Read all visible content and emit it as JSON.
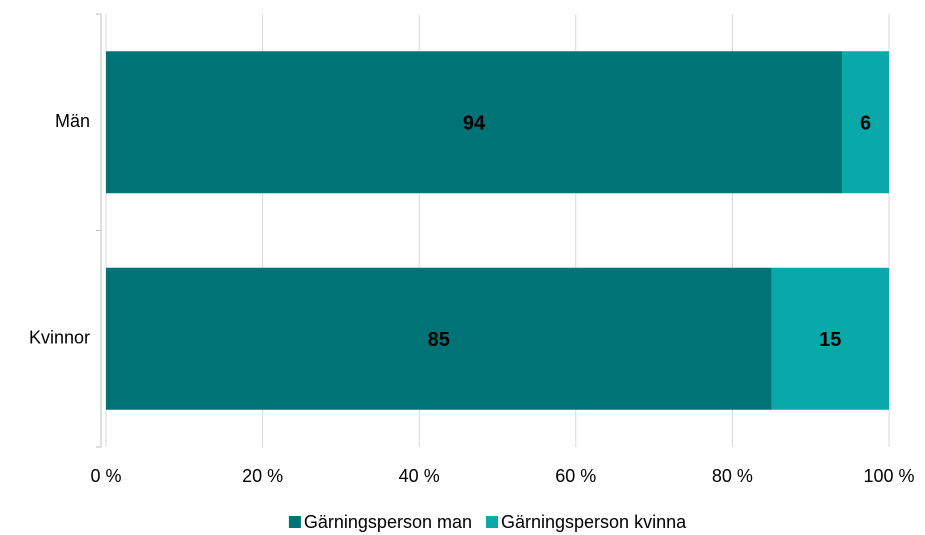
{
  "chart_data": {
    "type": "stacked_barh",
    "categories": [
      "Män",
      "Kvinnor"
    ],
    "series": [
      {
        "name": "Gärningsperson man",
        "color": "#007377",
        "values": [
          94,
          85
        ]
      },
      {
        "name": "Gärningsperson kvinna",
        "color": "#0aa8a8",
        "values": [
          6,
          15
        ]
      }
    ],
    "xlim": [
      0,
      100
    ],
    "xticks": [
      {
        "value": 0,
        "label": "0 %"
      },
      {
        "value": 20,
        "label": "20 %"
      },
      {
        "value": 40,
        "label": "40 %"
      },
      {
        "value": 60,
        "label": "60 %"
      },
      {
        "value": 80,
        "label": "80 %"
      },
      {
        "value": 100,
        "label": "100 %"
      }
    ],
    "grid": true,
    "legend": "bottom"
  }
}
